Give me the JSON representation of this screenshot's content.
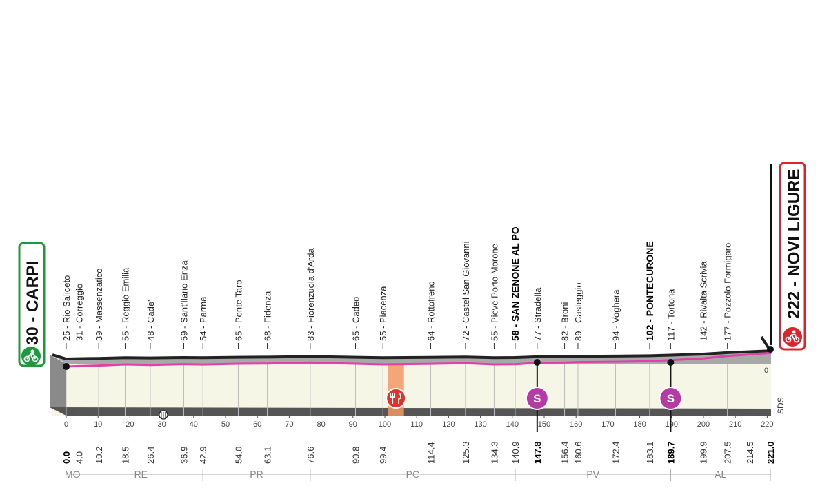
{
  "start": {
    "label": "30 - CARPI",
    "color": "#1e9a3c"
  },
  "finish": {
    "label": "222 - NOVI LIGURE",
    "color": "#d9262c"
  },
  "colors": {
    "route": "#e040a8",
    "terrain": "#a8a8a8",
    "base": "#f6f6e6",
    "sprint": "#b53aa5",
    "feed": "#f29863",
    "feed_icon": "#d9362c"
  },
  "places": [
    {
      "name": "25 - Rio Saliceto",
      "km": 0.0
    },
    {
      "name": "31 - Correggio",
      "km": 4.0
    },
    {
      "name": "39 - Massenzatico",
      "km": 10.2
    },
    {
      "name": "55 - Reggio Emilia",
      "km": 18.5
    },
    {
      "name": "48 - Cade'",
      "km": 26.4
    },
    {
      "name": "59 - Sant'Ilario Enza",
      "km": 36.9
    },
    {
      "name": "54 - Parma",
      "km": 42.9
    },
    {
      "name": "65 - Ponte Taro",
      "km": 54.0
    },
    {
      "name": "68 - Fidenza",
      "km": 63.1
    },
    {
      "name": "83 - Fiorenzuola d'Arda",
      "km": 76.6
    },
    {
      "name": "65 - Cadeo",
      "km": 90.8
    },
    {
      "name": "55 - Piacenza",
      "km": 99.4
    },
    {
      "name": "64 - Rottofreno",
      "km": 114.4
    },
    {
      "name": "72 - Castel San Giovanni",
      "km": 125.3
    },
    {
      "name": "55 - Pieve Porto Morone",
      "km": 134.3
    },
    {
      "name": "58 - SAN ZENONE AL PO",
      "km": 140.9,
      "bold": true
    },
    {
      "name": "77 - Stradella",
      "km": 147.8
    },
    {
      "name": "82 - Broni",
      "km": 156.4
    },
    {
      "name": "89 - Casteggio",
      "km": 160.6
    },
    {
      "name": "94 - Voghera",
      "km": 172.4
    },
    {
      "name": "102 - PONTECURONE",
      "km": 183.1,
      "bold": true
    },
    {
      "name": "117 - Tortona",
      "km": 189.7
    },
    {
      "name": "142 - Rivalta Scrivia",
      "km": 199.9
    },
    {
      "name": "177 - Pozzolo Formigaro",
      "km": 207.5
    }
  ],
  "km_values": [
    "0.0",
    "4.0",
    "10.2",
    "18.5",
    "26.4",
    "36.9",
    "42.9",
    "54.0",
    "63.1",
    "76.6",
    "90.8",
    "99.4",
    "114.4",
    "125.3",
    "134.3",
    "140.9",
    "147.8",
    "156.4",
    "160.6",
    "172.4",
    "183.1",
    "189.7",
    "199.9",
    "207.5",
    "214.5",
    "221.0"
  ],
  "km_bold": [
    "0.0",
    "147.8",
    "189.7",
    "221.0"
  ],
  "ticks": [
    "0",
    "10",
    "20",
    "30",
    "40",
    "50",
    "60",
    "70",
    "80",
    "90",
    "100",
    "110",
    "120",
    "130",
    "140",
    "150",
    "160",
    "170",
    "180",
    "190",
    "200",
    "210",
    "220"
  ],
  "provinces": [
    {
      "code": "MO",
      "from": 0,
      "to": 4.0
    },
    {
      "code": "RE",
      "from": 4.0,
      "to": 42.9
    },
    {
      "code": "PR",
      "from": 42.9,
      "to": 76.6
    },
    {
      "code": "PC",
      "from": 76.6,
      "to": 140.9
    },
    {
      "code": "PV",
      "from": 140.9,
      "to": 189.7
    },
    {
      "code": "AL",
      "from": 189.7,
      "to": 221.0
    }
  ],
  "sprints": [
    {
      "km": 147.8,
      "symbol": "S"
    },
    {
      "km": 189.7,
      "symbol": "S"
    }
  ],
  "feed_zone": {
    "km_from": 101,
    "km_to": 106
  },
  "altitude_mark": "0",
  "right_label": "SDS",
  "elevation_profile": [
    [
      0,
      25
    ],
    [
      4,
      31
    ],
    [
      10.2,
      39
    ],
    [
      18.5,
      55
    ],
    [
      26.4,
      48
    ],
    [
      36.9,
      59
    ],
    [
      42.9,
      54
    ],
    [
      54,
      65
    ],
    [
      63.1,
      68
    ],
    [
      76.6,
      83
    ],
    [
      90.8,
      65
    ],
    [
      99.4,
      55
    ],
    [
      114.4,
      64
    ],
    [
      125.3,
      72
    ],
    [
      134.3,
      55
    ],
    [
      140.9,
      58
    ],
    [
      147.8,
      77
    ],
    [
      156.4,
      82
    ],
    [
      160.6,
      89
    ],
    [
      172.4,
      94
    ],
    [
      183.1,
      102
    ],
    [
      189.7,
      117
    ],
    [
      199.9,
      142
    ],
    [
      207.5,
      177
    ],
    [
      214.5,
      200
    ],
    [
      221,
      222
    ]
  ]
}
